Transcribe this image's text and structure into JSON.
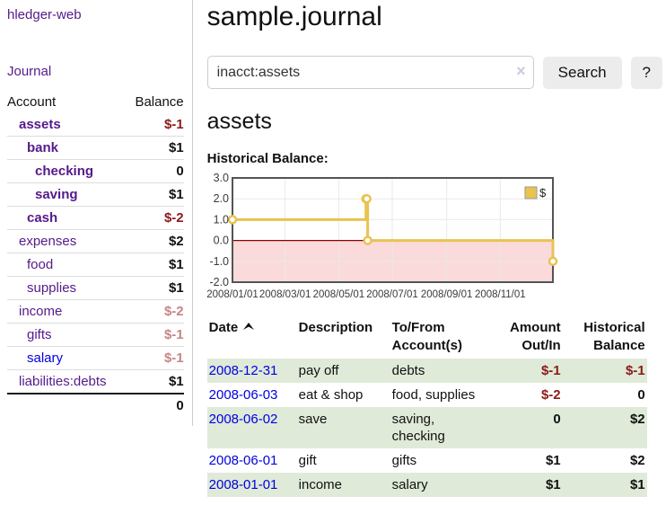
{
  "app": {
    "brand": "hledger-web"
  },
  "nav": {
    "journal": "Journal"
  },
  "colors": {
    "link_purple": "#551a8b",
    "link_blue": "#0000e0",
    "negative_dark": "#8b1a1a",
    "negative_light": "#c58585",
    "stripe_green": "#dfead8",
    "chart_gold": "#e8c350",
    "chart_negative_fill": "#fadada",
    "chart_zero_line": "#8b0000",
    "chart_border": "#545454",
    "gridline": "#e9e9e9"
  },
  "sidebar": {
    "headers": {
      "account": "Account",
      "balance": "Balance"
    },
    "rows": [
      {
        "label": "assets",
        "depth": 1,
        "match": true,
        "link": "purple",
        "balance": "$-1",
        "tone": "negdark"
      },
      {
        "label": "bank",
        "depth": 2,
        "match": true,
        "link": "purple",
        "balance": "$1",
        "tone": "pos"
      },
      {
        "label": "checking",
        "depth": 3,
        "match": true,
        "link": "purple",
        "balance": "0",
        "tone": "pos"
      },
      {
        "label": "saving",
        "depth": 3,
        "match": true,
        "link": "purple",
        "balance": "$1",
        "tone": "pos"
      },
      {
        "label": "cash",
        "depth": 2,
        "match": true,
        "link": "purple",
        "balance": "$-2",
        "tone": "negdark"
      },
      {
        "label": "expenses",
        "depth": 1,
        "match": false,
        "link": "purple",
        "balance": "$2",
        "tone": "pos"
      },
      {
        "label": "food",
        "depth": 2,
        "match": false,
        "link": "purple",
        "balance": "$1",
        "tone": "pos"
      },
      {
        "label": "supplies",
        "depth": 2,
        "match": false,
        "link": "purple",
        "balance": "$1",
        "tone": "pos"
      },
      {
        "label": "income",
        "depth": 1,
        "match": false,
        "link": "purple",
        "balance": "$-2",
        "tone": "neglight"
      },
      {
        "label": "gifts",
        "depth": 2,
        "match": false,
        "link": "purple",
        "balance": "$-1",
        "tone": "neglight"
      },
      {
        "label": "salary",
        "depth": 2,
        "match": false,
        "link": "blue",
        "balance": "$-1",
        "tone": "neglight"
      },
      {
        "label": "liabilities:debts",
        "depth": 1,
        "match": false,
        "link": "purple",
        "balance": "$1",
        "tone": "pos"
      }
    ],
    "total": "0"
  },
  "main": {
    "title": "sample.journal",
    "search": {
      "value": "inacct:assets",
      "clear": "×",
      "button": "Search",
      "help": "?"
    },
    "account_title": "assets",
    "chart_title": "Historical Balance:"
  },
  "chart_data": {
    "type": "line",
    "step": true,
    "title": "Historical Balance:",
    "series": [
      {
        "name": "$",
        "points": [
          [
            "2008-01-01",
            1
          ],
          [
            "2008-06-01",
            2
          ],
          [
            "2008-06-02",
            2
          ],
          [
            "2008-06-03",
            0
          ],
          [
            "2008-12-31",
            -1
          ]
        ]
      }
    ],
    "ylim": [
      -2,
      3
    ],
    "yticks": [
      "3.0",
      "2.0",
      "1.0",
      "0.0",
      "-1.0",
      "-2.0"
    ],
    "ytick_values": [
      3,
      2,
      1,
      0,
      -1,
      -2
    ],
    "xrange": [
      "2008-01-01",
      "2008-12-31"
    ],
    "xticks": [
      {
        "date": "2008-01-01",
        "label": "2008/01/01"
      },
      {
        "date": "2008-03-01",
        "label": "2008/03/01"
      },
      {
        "date": "2008-05-01",
        "label": "2008/05/01"
      },
      {
        "date": "2008-07-01",
        "label": "2008/07/01"
      },
      {
        "date": "2008-09-01",
        "label": "2008/09/01"
      },
      {
        "date": "2008-11-01",
        "label": "2008/11/01"
      }
    ],
    "grid": true,
    "legend": {
      "label": "$",
      "position": "top-right"
    }
  },
  "register": {
    "headers": {
      "date": "Date",
      "description": "Description",
      "accounts": "To/From Account(s)",
      "amount": "Amount Out/In",
      "balance": "Historical Balance"
    },
    "rows": [
      {
        "date": "2008-12-31",
        "description": "pay off",
        "accounts": "debts",
        "amount": "$-1",
        "amount_tone": "neg",
        "balance": "$-1",
        "balance_tone": "neg"
      },
      {
        "date": "2008-06-03",
        "description": "eat & shop",
        "accounts": "food, supplies",
        "amount": "$-2",
        "amount_tone": "neg",
        "balance": "0",
        "balance_tone": "pos"
      },
      {
        "date": "2008-06-02",
        "description": "save",
        "accounts": "saving, checking",
        "amount": "0",
        "amount_tone": "pos",
        "balance": "$2",
        "balance_tone": "pos"
      },
      {
        "date": "2008-06-01",
        "description": "gift",
        "accounts": "gifts",
        "amount": "$1",
        "amount_tone": "pos",
        "balance": "$2",
        "balance_tone": "pos"
      },
      {
        "date": "2008-01-01",
        "description": "income",
        "accounts": "salary",
        "amount": "$1",
        "amount_tone": "pos",
        "balance": "$1",
        "balance_tone": "pos"
      }
    ]
  }
}
